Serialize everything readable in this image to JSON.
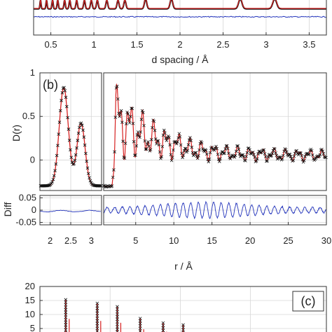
{
  "chart_data": [
    {
      "panel": "a",
      "type": "line",
      "xlabel": "d spacing / Å",
      "ylabel": "",
      "xlim": [
        0.3,
        3.7
      ],
      "grid": true,
      "x_ticks": [
        "0.5",
        "1",
        "1.5",
        "2",
        "2.5",
        "3",
        "3.5"
      ],
      "x_tick_values": [
        0.5,
        1,
        1.5,
        2,
        2.5,
        3,
        3.5
      ],
      "peak_positions": [
        0.38,
        0.45,
        0.52,
        0.58,
        0.66,
        0.72,
        0.8,
        0.89,
        0.97,
        1.04,
        1.15,
        1.28,
        1.36,
        1.6,
        1.9,
        2.7,
        3.1
      ],
      "series": [
        {
          "name": "",
          "role": "observed",
          "color": "#000000"
        },
        {
          "name": "",
          "role": "calculated",
          "color": "#d62020"
        },
        {
          "name": "",
          "role": "difference",
          "color": "#2233bb"
        }
      ]
    },
    {
      "panel": "b",
      "label": "(b)",
      "type": "scatter",
      "ylabel": "D(r)",
      "xlabel": "r / Å",
      "xlim_left": [
        1.75,
        3.25
      ],
      "xlim_right": [
        0.8,
        30
      ],
      "ylim": [
        -0.35,
        1
      ],
      "grid": true,
      "x_ticks_left": [
        "2",
        "2.5",
        "3"
      ],
      "x_tick_values_left": [
        2,
        2.5,
        3
      ],
      "x_ticks_right": [
        "5",
        "10",
        "15",
        "20",
        "25",
        "30"
      ],
      "x_tick_values_right": [
        5,
        10,
        15,
        20,
        25,
        30
      ],
      "y_ticks": [
        "0",
        "0.5",
        "1"
      ],
      "y_tick_values": [
        0,
        0.5,
        1
      ],
      "peaks_left": [
        {
          "r": 2.33,
          "D": 0.83
        },
        {
          "r": 2.75,
          "D": 0.42
        }
      ],
      "baseline": -0.3,
      "diff_panel": {
        "ylabel": "Diff",
        "ylim": [
          -0.06,
          0.06
        ],
        "y_ticks": [
          "0.05",
          "0",
          "-0.05"
        ],
        "y_tick_values": [
          0.05,
          0,
          -0.05
        ]
      },
      "series": [
        {
          "name": "",
          "role": "observed",
          "marker": "x",
          "color": "#111111"
        },
        {
          "name": "",
          "role": "calculated",
          "color": "#d62020"
        },
        {
          "name": "",
          "role": "difference",
          "color": "#2233bb"
        }
      ]
    },
    {
      "panel": "c",
      "label": "(c)",
      "type": "line",
      "ylabel": "",
      "ylim": [
        0,
        20
      ],
      "grid": true,
      "y_ticks": [
        "20",
        "15",
        "10",
        "5"
      ],
      "y_tick_values": [
        20,
        15,
        10,
        5
      ],
      "peaks": [
        {
          "x": 0.09,
          "y": 15.3
        },
        {
          "x": 0.2,
          "y": 14.0
        },
        {
          "x": 0.27,
          "y": 12.8
        },
        {
          "x": 0.35,
          "y": 8.6
        },
        {
          "x": 0.43,
          "y": 7.0
        },
        {
          "x": 0.5,
          "y": 6.3
        }
      ],
      "series": [
        {
          "name": "",
          "role": "observed",
          "marker": "x",
          "color": "#111111"
        },
        {
          "name": "",
          "role": "calculated",
          "color": "#d62020"
        }
      ]
    }
  ],
  "colors": {
    "observed": "#111111",
    "calculated": "#d62020",
    "difference": "#2233bb",
    "grid": "#d6d6d6"
  }
}
